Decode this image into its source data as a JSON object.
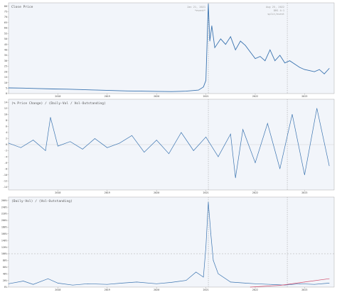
{
  "chart_data": [
    {
      "type": "line",
      "title": "Close Price",
      "x_ticks": [
        "2018",
        "2019",
        "2020",
        "2021",
        "2022",
        "2023"
      ],
      "y_ticks": [
        0,
        5,
        10,
        15,
        20,
        25,
        30,
        35,
        40,
        45,
        50,
        55,
        60,
        65,
        70,
        75,
        80
      ],
      "ylim": [
        0,
        83
      ],
      "grid": false,
      "annotations": [
        {
          "label": "Jan 21, 2021",
          "sub": "*event*",
          "x": 2021.05,
          "style": "dotted"
        },
        {
          "label": "Aug 25, 2022",
          "sub": "DRS 4:1",
          "sub2": "split/event",
          "x": 2022.65,
          "style": "dotted"
        }
      ],
      "series": [
        {
          "color": "#3b74b0",
          "x": [
            2017.0,
            2017.3,
            2017.6,
            2017.9,
            2018.2,
            2018.5,
            2018.8,
            2019.1,
            2019.4,
            2019.7,
            2020.0,
            2020.3,
            2020.6,
            2020.85,
            2020.95,
            2021.0,
            2021.05,
            2021.08,
            2021.12,
            2021.18,
            2021.3,
            2021.4,
            2021.5,
            2021.6,
            2021.7,
            2021.8,
            2021.9,
            2022.0,
            2022.1,
            2022.2,
            2022.3,
            2022.4,
            2022.5,
            2022.6,
            2022.7,
            2022.8,
            2022.9,
            2023.0,
            2023.1,
            2023.2,
            2023.3,
            2023.4,
            2023.5
          ],
          "values": [
            5.2,
            5.0,
            4.6,
            4.2,
            4.0,
            3.6,
            3.2,
            2.8,
            2.4,
            2.2,
            2.0,
            1.8,
            2.2,
            3.2,
            6.0,
            12.0,
            82.0,
            48.0,
            62.0,
            42.0,
            50.0,
            45.0,
            52.0,
            40.0,
            48.0,
            44.0,
            38.0,
            32.0,
            34.0,
            30.0,
            40.0,
            30.0,
            35.0,
            28.0,
            30.0,
            27.0,
            24.0,
            22.0,
            21.0,
            20.0,
            22.0,
            18.0,
            23.0
          ]
        }
      ]
    },
    {
      "type": "line",
      "title": "(% Price Change) / (Daily-Vol / Vol-Outstanding)",
      "x_ticks": [
        "2018",
        "2019",
        "2020",
        "2021",
        "2022",
        "2023"
      ],
      "y_ticks": [
        14,
        12,
        10,
        8,
        6,
        4,
        2,
        0,
        -2,
        -4,
        -6,
        -8,
        -10,
        -12,
        -14
      ],
      "ylim": [
        -15,
        15
      ],
      "grid": false,
      "note": "noisy oscillation around 0; spikes to about +9 near early 2018 and about -11 near 2021.6; amplitude widens to roughly ±12 during 2022–2023",
      "series": [
        {
          "color": "#3b74b0",
          "x": [
            2017.0,
            2017.25,
            2017.5,
            2017.75,
            2017.85,
            2018.0,
            2018.25,
            2018.5,
            2018.75,
            2019.0,
            2019.25,
            2019.5,
            2019.75,
            2020.0,
            2020.25,
            2020.5,
            2020.75,
            2021.0,
            2021.25,
            2021.5,
            2021.6,
            2021.75,
            2022.0,
            2022.25,
            2022.5,
            2022.75,
            2023.0,
            2023.25,
            2023.5
          ],
          "values": [
            0.5,
            -1.0,
            1.5,
            -2.0,
            9.0,
            -0.5,
            1.0,
            -1.5,
            2.0,
            -1.0,
            0.5,
            3.0,
            -2.5,
            1.5,
            -3.0,
            4.0,
            -2.0,
            2.5,
            -4.0,
            3.5,
            -11.0,
            5.0,
            -6.0,
            7.0,
            -8.0,
            10.0,
            -10.0,
            12.0,
            -7.0
          ]
        }
      ]
    },
    {
      "type": "line",
      "title": "(Daily-Vol) / (Vol-Outstanding)",
      "x_ticks": [
        "2018",
        "2019",
        "2020",
        "2021",
        "2022",
        "2023"
      ],
      "y_ticks": [
        "260%",
        "240%",
        "220%",
        "200%",
        "180%",
        "160%",
        "140%",
        "120%",
        "100%",
        "80%",
        "60%",
        "40%",
        "20%",
        "0%"
      ],
      "ylim": [
        0,
        270
      ],
      "grid": false,
      "reference_lines": [
        100
      ],
      "series": [
        {
          "color": "#3b74b0",
          "x": [
            2017.0,
            2017.3,
            2017.5,
            2017.8,
            2018.0,
            2018.3,
            2018.6,
            2019.0,
            2019.3,
            2019.6,
            2020.0,
            2020.3,
            2020.6,
            2020.8,
            2020.95,
            2021.0,
            2021.05,
            2021.1,
            2021.15,
            2021.25,
            2021.5,
            2021.8,
            2022.0,
            2022.3,
            2022.6,
            2022.9,
            2023.2,
            2023.5
          ],
          "values": [
            10,
            18,
            8,
            25,
            12,
            6,
            10,
            8,
            12,
            15,
            10,
            14,
            20,
            45,
            30,
            120,
            255,
            160,
            80,
            40,
            15,
            12,
            10,
            8,
            6,
            10,
            8,
            12
          ]
        },
        {
          "color": "#d04a6a",
          "x": [
            2021.9,
            2022.5,
            2023.0,
            2023.5
          ],
          "values": [
            0,
            5,
            15,
            25
          ]
        }
      ]
    }
  ]
}
